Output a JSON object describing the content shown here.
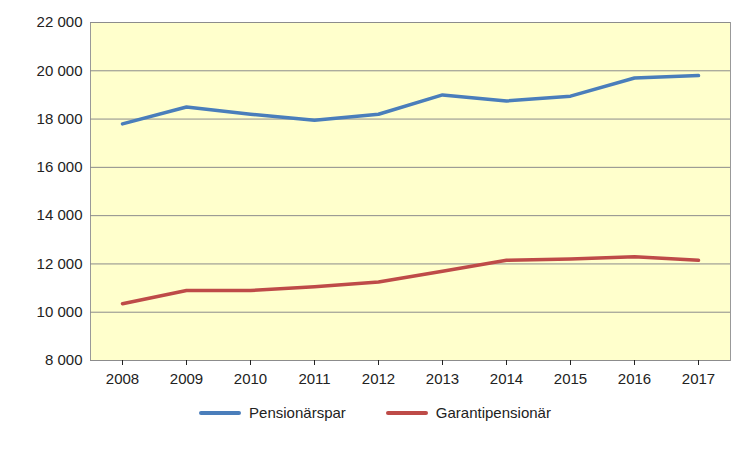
{
  "chart_data": {
    "type": "line",
    "categories": [
      "2008",
      "2009",
      "2010",
      "2011",
      "2012",
      "2013",
      "2014",
      "2015",
      "2016",
      "2017"
    ],
    "series": [
      {
        "name": "Pensionärspar",
        "color": "#4a7ebb",
        "values": [
          17800,
          18500,
          18200,
          17950,
          18200,
          19000,
          18750,
          18950,
          19700,
          19800
        ]
      },
      {
        "name": "Garantipensionär",
        "color": "#be4b48",
        "values": [
          10350,
          10900,
          10900,
          11050,
          11250,
          11700,
          12150,
          12200,
          12300,
          12150
        ]
      }
    ],
    "ylim": [
      8000,
      22000
    ],
    "yticks": [
      {
        "value": 8000,
        "label": "8 000"
      },
      {
        "value": 10000,
        "label": "10 000"
      },
      {
        "value": 12000,
        "label": "12 000"
      },
      {
        "value": 14000,
        "label": "14 000"
      },
      {
        "value": 16000,
        "label": "16 000"
      },
      {
        "value": 18000,
        "label": "18 000"
      },
      {
        "value": 20000,
        "label": "20 000"
      },
      {
        "value": 22000,
        "label": "22 000"
      }
    ],
    "grid": true,
    "legend": "bottom"
  }
}
